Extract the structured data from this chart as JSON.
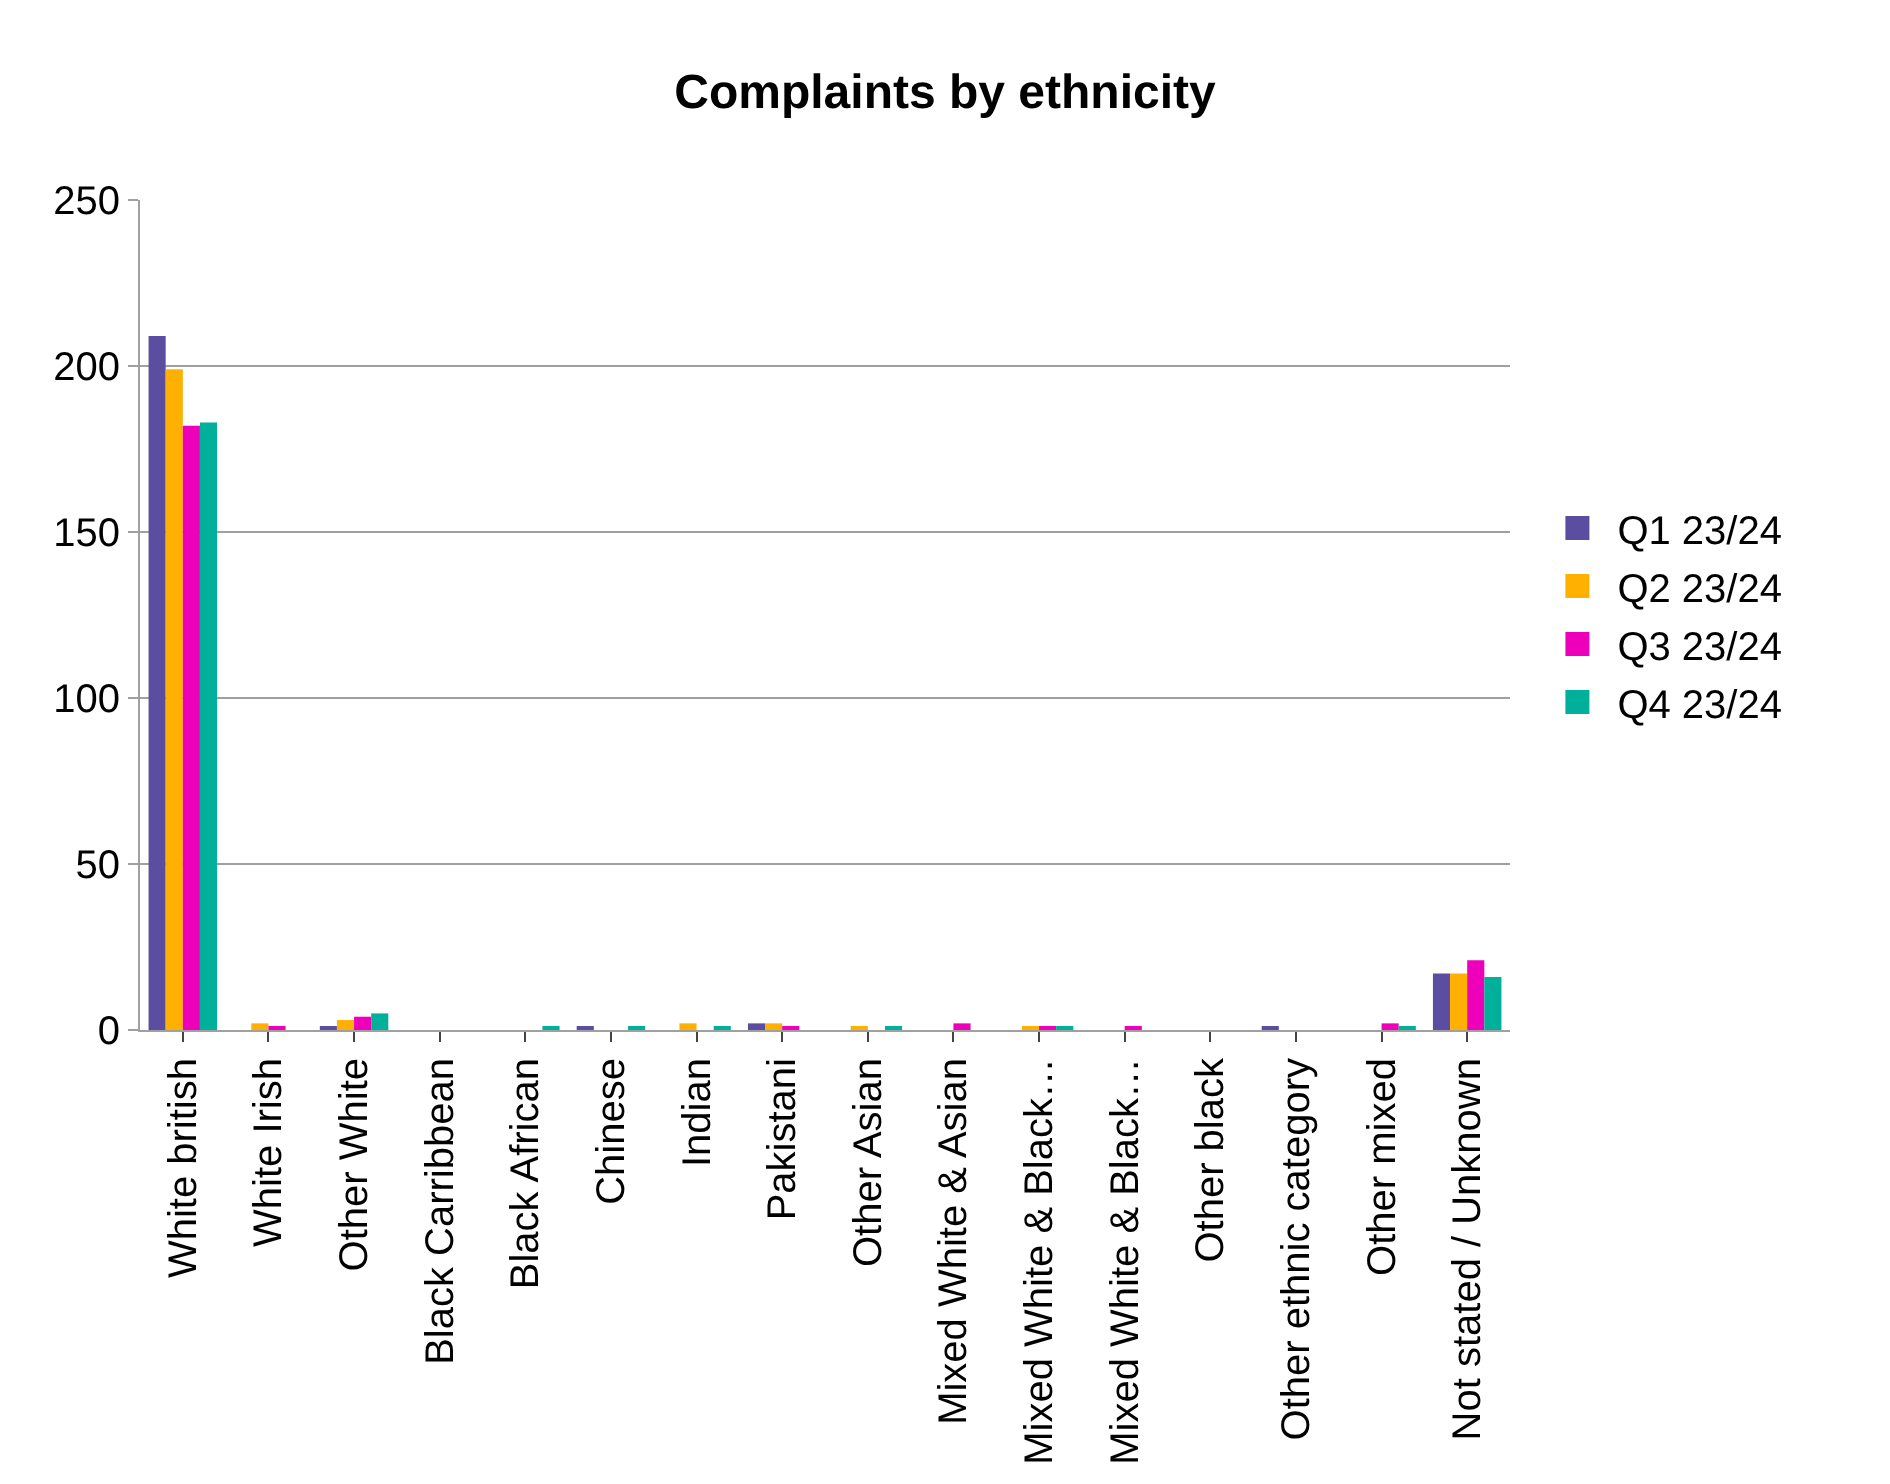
{
  "chart_data": {
    "type": "bar",
    "title": "Complaints by ethnicity",
    "categories": [
      "White british",
      "White Irish",
      "Other White",
      "Black Carribbean",
      "Black African",
      "Chinese",
      "Indian",
      "Pakistani",
      "Other Asian",
      "Mixed White & Asian",
      "Mixed White & Black…",
      "Mixed White & Black…",
      "Other black",
      "Other ethnic category",
      "Other mixed",
      "Not stated / Unknown"
    ],
    "series": [
      {
        "name": "Q1 23/24",
        "color": "#5b4ea0",
        "values": [
          209,
          0,
          1,
          0,
          0,
          1,
          0,
          2,
          0,
          0,
          0,
          0,
          0,
          1,
          0,
          17
        ]
      },
      {
        "name": "Q2 23/24",
        "color": "#ffb000",
        "values": [
          199,
          2,
          3,
          0,
          0,
          0,
          2,
          2,
          1,
          0,
          1,
          0,
          0,
          0,
          0,
          17
        ]
      },
      {
        "name": "Q3 23/24",
        "color": "#ee00bb",
        "values": [
          182,
          1,
          4,
          0,
          0,
          0,
          0,
          1,
          0,
          2,
          1,
          1,
          0,
          0,
          2,
          21
        ]
      },
      {
        "name": "Q4 23/24",
        "color": "#00b09a",
        "values": [
          183,
          0,
          5,
          0,
          1,
          1,
          1,
          0,
          1,
          0,
          1,
          0,
          0,
          0,
          1,
          16
        ]
      }
    ],
    "ylim": [
      0,
      250
    ],
    "yticks": [
      0,
      50,
      100,
      150,
      200,
      250
    ],
    "grid": "y",
    "legend": "right"
  }
}
